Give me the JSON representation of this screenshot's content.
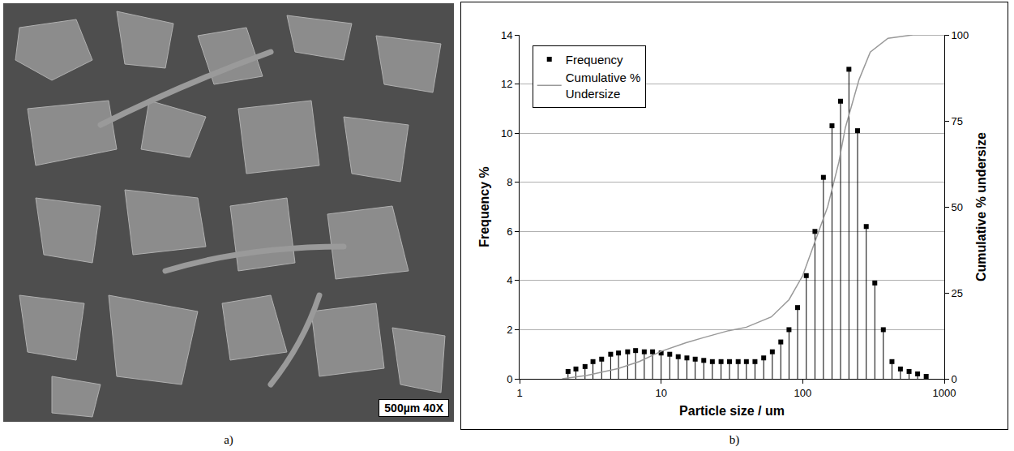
{
  "panels": {
    "a": {
      "label": "a)",
      "scale_bar": "500µm 40X"
    },
    "b": {
      "label": "b)"
    }
  },
  "chart_data": {
    "type": "scatter",
    "x_label": "Particle size / um",
    "y_label": "Frequency %",
    "y2_label": "Cumulative % undersize",
    "log": "x",
    "grid": true,
    "legend": "upper left",
    "xlim": [
      1,
      1000
    ],
    "xticks": [
      1,
      10,
      100,
      1000
    ],
    "ylim": [
      0,
      14
    ],
    "yticks": [
      0,
      2,
      4,
      6,
      8,
      10,
      12,
      14
    ],
    "y2lim": [
      0,
      100
    ],
    "y2ticks": [
      0,
      25,
      50,
      75,
      100
    ],
    "series": [
      {
        "name": "Frequency",
        "type": "scatter",
        "marker": "square",
        "color": "#000000",
        "x": [
          2.2,
          2.5,
          2.9,
          3.3,
          3.8,
          4.4,
          5.0,
          5.8,
          6.6,
          7.6,
          8.7,
          10,
          11.5,
          13.2,
          15.2,
          17.4,
          20,
          23,
          26.5,
          30.4,
          35,
          40,
          46,
          53,
          61,
          70,
          80,
          92,
          106,
          122,
          140,
          161,
          185,
          212,
          244,
          281,
          323,
          371,
          427,
          490,
          564,
          648,
          745
        ],
        "values": [
          0.3,
          0.4,
          0.5,
          0.7,
          0.8,
          1.0,
          1.05,
          1.1,
          1.15,
          1.1,
          1.1,
          1.05,
          1.0,
          0.9,
          0.85,
          0.8,
          0.75,
          0.7,
          0.7,
          0.7,
          0.7,
          0.7,
          0.7,
          0.85,
          1.1,
          1.5,
          2.0,
          2.9,
          4.2,
          6.0,
          8.2,
          10.3,
          11.3,
          12.6,
          10.1,
          6.2,
          3.9,
          2.0,
          0.7,
          0.4,
          0.3,
          0.2,
          0.1
        ]
      },
      {
        "name": "Cumulative % Undersize",
        "type": "line",
        "color": "#999999",
        "axis": "y2",
        "x": [
          2,
          3,
          5,
          7,
          10,
          15,
          20,
          30,
          40,
          60,
          80,
          100,
          130,
          150,
          180,
          200,
          250,
          300,
          400,
          600,
          1000
        ],
        "values": [
          0,
          1,
          3,
          5,
          8,
          10.5,
          12,
          14,
          15,
          18,
          23,
          30,
          43,
          50,
          63,
          73,
          87,
          95,
          99,
          100,
          100
        ]
      }
    ]
  }
}
